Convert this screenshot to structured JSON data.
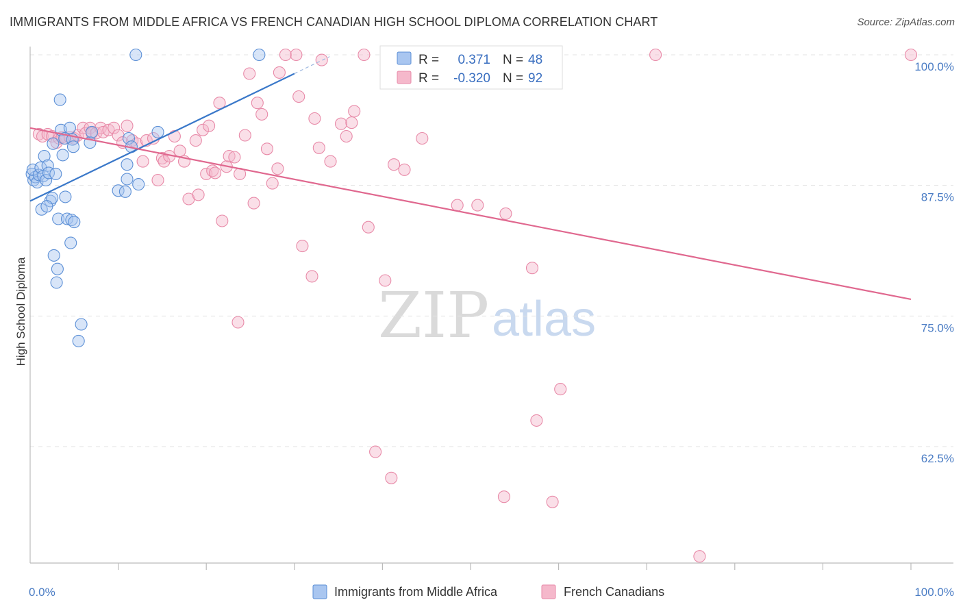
{
  "title": "IMMIGRANTS FROM MIDDLE AFRICA VS FRENCH CANADIAN HIGH SCHOOL DIPLOMA CORRELATION CHART",
  "source": "Source: ZipAtlas.com",
  "watermark": {
    "zip": "ZIP",
    "atlas": "atlas"
  },
  "colors": {
    "blue_fill": "#a9c6f0",
    "blue_stroke": "#5b8fd6",
    "blue_line": "#3a78c9",
    "pink_fill": "#f5b8cb",
    "pink_stroke": "#e88aa8",
    "pink_line": "#e0688f",
    "tick_text": "#4a7cc4",
    "grid": "#e3e3e3"
  },
  "legend": {
    "rows": [
      {
        "r_label": "R =",
        "r_value": "0.371",
        "n_label": "N =",
        "n_value": "48"
      },
      {
        "r_label": "R =",
        "r_value": "-0.320",
        "n_label": "N =",
        "n_value": "92"
      }
    ]
  },
  "chart_data": {
    "type": "scatter",
    "title": "IMMIGRANTS FROM MIDDLE AFRICA VS FRENCH CANADIAN HIGH SCHOOL DIPLOMA CORRELATION CHART",
    "xlabel": "",
    "ylabel": "High School Diploma",
    "xlim": [
      0,
      100
    ],
    "ylim": [
      50.5,
      101.5
    ],
    "x_tick_labels": [
      {
        "value": 0,
        "label": "0.0%"
      },
      {
        "value": 100,
        "label": "100.0%"
      }
    ],
    "y_tick_labels": [
      {
        "value": 100,
        "label": "100.0%"
      },
      {
        "value": 87.5,
        "label": "87.5%"
      },
      {
        "value": 75,
        "label": "75.0%"
      },
      {
        "value": 62.5,
        "label": "62.5%"
      }
    ],
    "grid": true,
    "legend_position": "top-center",
    "series": [
      {
        "name": "Immigrants from Middle Africa",
        "color": "#5b8fd6",
        "r": 0.371,
        "n": 48,
        "trend": {
          "x0": 0.0,
          "y0": 86.0,
          "x1": 30.0,
          "y1": 98.2,
          "dash_to_x": 34.0
        },
        "points": [
          [
            0.2,
            88.6
          ],
          [
            0.4,
            88.0
          ],
          [
            0.6,
            88.3
          ],
          [
            0.3,
            89.0
          ],
          [
            0.8,
            87.8
          ],
          [
            1.0,
            88.5
          ],
          [
            1.2,
            89.2
          ],
          [
            1.5,
            88.4
          ],
          [
            1.6,
            90.3
          ],
          [
            1.8,
            88.0
          ],
          [
            2.0,
            89.4
          ],
          [
            2.1,
            88.7
          ],
          [
            2.3,
            86.0
          ],
          [
            2.5,
            86.3
          ],
          [
            2.6,
            91.5
          ],
          [
            2.9,
            88.6
          ],
          [
            1.3,
            85.2
          ],
          [
            1.9,
            85.5
          ],
          [
            2.7,
            80.8
          ],
          [
            3.0,
            78.2
          ],
          [
            3.1,
            79.5
          ],
          [
            3.2,
            84.3
          ],
          [
            3.5,
            92.8
          ],
          [
            3.7,
            90.4
          ],
          [
            3.4,
            95.7
          ],
          [
            3.9,
            92.0
          ],
          [
            4.0,
            86.4
          ],
          [
            4.2,
            84.3
          ],
          [
            4.5,
            93.0
          ],
          [
            4.6,
            82.0
          ],
          [
            4.7,
            84.2
          ],
          [
            4.8,
            91.9
          ],
          [
            4.9,
            91.2
          ],
          [
            5.0,
            84.0
          ],
          [
            5.5,
            72.6
          ],
          [
            5.8,
            74.2
          ],
          [
            6.8,
            91.6
          ],
          [
            7.0,
            92.6
          ],
          [
            10.0,
            87.0
          ],
          [
            10.8,
            86.9
          ],
          [
            11.0,
            88.1
          ],
          [
            11.2,
            92.0
          ],
          [
            11.0,
            89.5
          ],
          [
            11.5,
            91.2
          ],
          [
            12.0,
            100.0
          ],
          [
            12.3,
            87.6
          ],
          [
            14.5,
            92.6
          ],
          [
            26.0,
            100.0
          ]
        ]
      },
      {
        "name": "French Canadians",
        "color": "#e88aa8",
        "r": -0.32,
        "n": 92,
        "trend": {
          "x0": 0.0,
          "y0": 93.0,
          "x1": 100.0,
          "y1": 76.6
        },
        "points": [
          [
            1.0,
            92.4
          ],
          [
            1.4,
            92.2
          ],
          [
            2.0,
            92.4
          ],
          [
            2.5,
            92.2
          ],
          [
            3.0,
            91.6
          ],
          [
            3.3,
            92.0
          ],
          [
            3.6,
            92.1
          ],
          [
            4.0,
            92.0
          ],
          [
            4.5,
            92.1
          ],
          [
            5.0,
            92.0
          ],
          [
            5.4,
            92.3
          ],
          [
            6.0,
            93.0
          ],
          [
            6.3,
            92.5
          ],
          [
            6.8,
            93.0
          ],
          [
            7.0,
            92.5
          ],
          [
            7.5,
            92.5
          ],
          [
            8.0,
            93.0
          ],
          [
            8.3,
            92.6
          ],
          [
            8.9,
            92.8
          ],
          [
            9.5,
            93.0
          ],
          [
            10.0,
            92.3
          ],
          [
            10.5,
            91.6
          ],
          [
            11.0,
            93.2
          ],
          [
            11.6,
            91.8
          ],
          [
            12.1,
            91.5
          ],
          [
            12.8,
            89.8
          ],
          [
            13.2,
            91.8
          ],
          [
            14.0,
            92.0
          ],
          [
            14.5,
            88.0
          ],
          [
            15.0,
            90.1
          ],
          [
            15.2,
            89.8
          ],
          [
            15.8,
            90.3
          ],
          [
            16.4,
            92.2
          ],
          [
            17.0,
            90.8
          ],
          [
            17.5,
            89.8
          ],
          [
            18.0,
            86.2
          ],
          [
            18.8,
            91.8
          ],
          [
            19.1,
            86.6
          ],
          [
            19.6,
            92.8
          ],
          [
            20.0,
            88.6
          ],
          [
            20.3,
            93.2
          ],
          [
            20.7,
            88.9
          ],
          [
            21.0,
            88.7
          ],
          [
            21.5,
            95.4
          ],
          [
            21.8,
            84.1
          ],
          [
            22.3,
            89.3
          ],
          [
            22.6,
            90.3
          ],
          [
            23.2,
            90.2
          ],
          [
            23.6,
            74.4
          ],
          [
            23.8,
            88.6
          ],
          [
            24.4,
            92.3
          ],
          [
            24.9,
            98.2
          ],
          [
            25.4,
            85.8
          ],
          [
            25.8,
            95.4
          ],
          [
            26.3,
            94.3
          ],
          [
            26.9,
            91.0
          ],
          [
            27.5,
            87.7
          ],
          [
            28.1,
            89.1
          ],
          [
            28.3,
            98.3
          ],
          [
            29.0,
            100.0
          ],
          [
            30.2,
            100.0
          ],
          [
            30.9,
            81.7
          ],
          [
            32.0,
            78.8
          ],
          [
            32.3,
            93.9
          ],
          [
            32.8,
            91.1
          ],
          [
            33.1,
            99.5
          ],
          [
            34.1,
            89.8
          ],
          [
            35.3,
            93.4
          ],
          [
            35.9,
            92.2
          ],
          [
            36.5,
            93.5
          ],
          [
            36.8,
            94.6
          ],
          [
            37.9,
            100.0
          ],
          [
            38.4,
            83.5
          ],
          [
            39.2,
            62.0
          ],
          [
            40.3,
            78.4
          ],
          [
            41.3,
            89.5
          ],
          [
            42.5,
            89.0
          ],
          [
            44.5,
            92.0
          ],
          [
            48.5,
            85.6
          ],
          [
            50.2,
            100.0
          ],
          [
            50.8,
            85.6
          ],
          [
            53.8,
            57.7
          ],
          [
            54.0,
            84.8
          ],
          [
            57.0,
            79.6
          ],
          [
            57.5,
            65.0
          ],
          [
            59.3,
            57.2
          ],
          [
            60.2,
            68.0
          ],
          [
            71.0,
            100.0
          ],
          [
            76.0,
            52.0
          ],
          [
            100.0,
            100.0
          ],
          [
            41.0,
            59.5
          ],
          [
            30.5,
            96.0
          ]
        ]
      }
    ]
  }
}
